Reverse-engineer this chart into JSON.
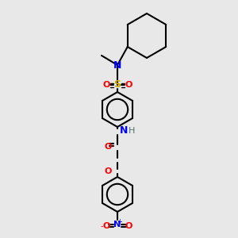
{
  "background_color": "#e8e8e8",
  "atom_colors": {
    "C": "#000000",
    "N": "#0000ff",
    "O": "#ff0000",
    "S": "#ccaa00",
    "H": "#507070"
  },
  "bond_color": "#000000",
  "figsize": [
    3.0,
    3.0
  ],
  "dpi": 100
}
